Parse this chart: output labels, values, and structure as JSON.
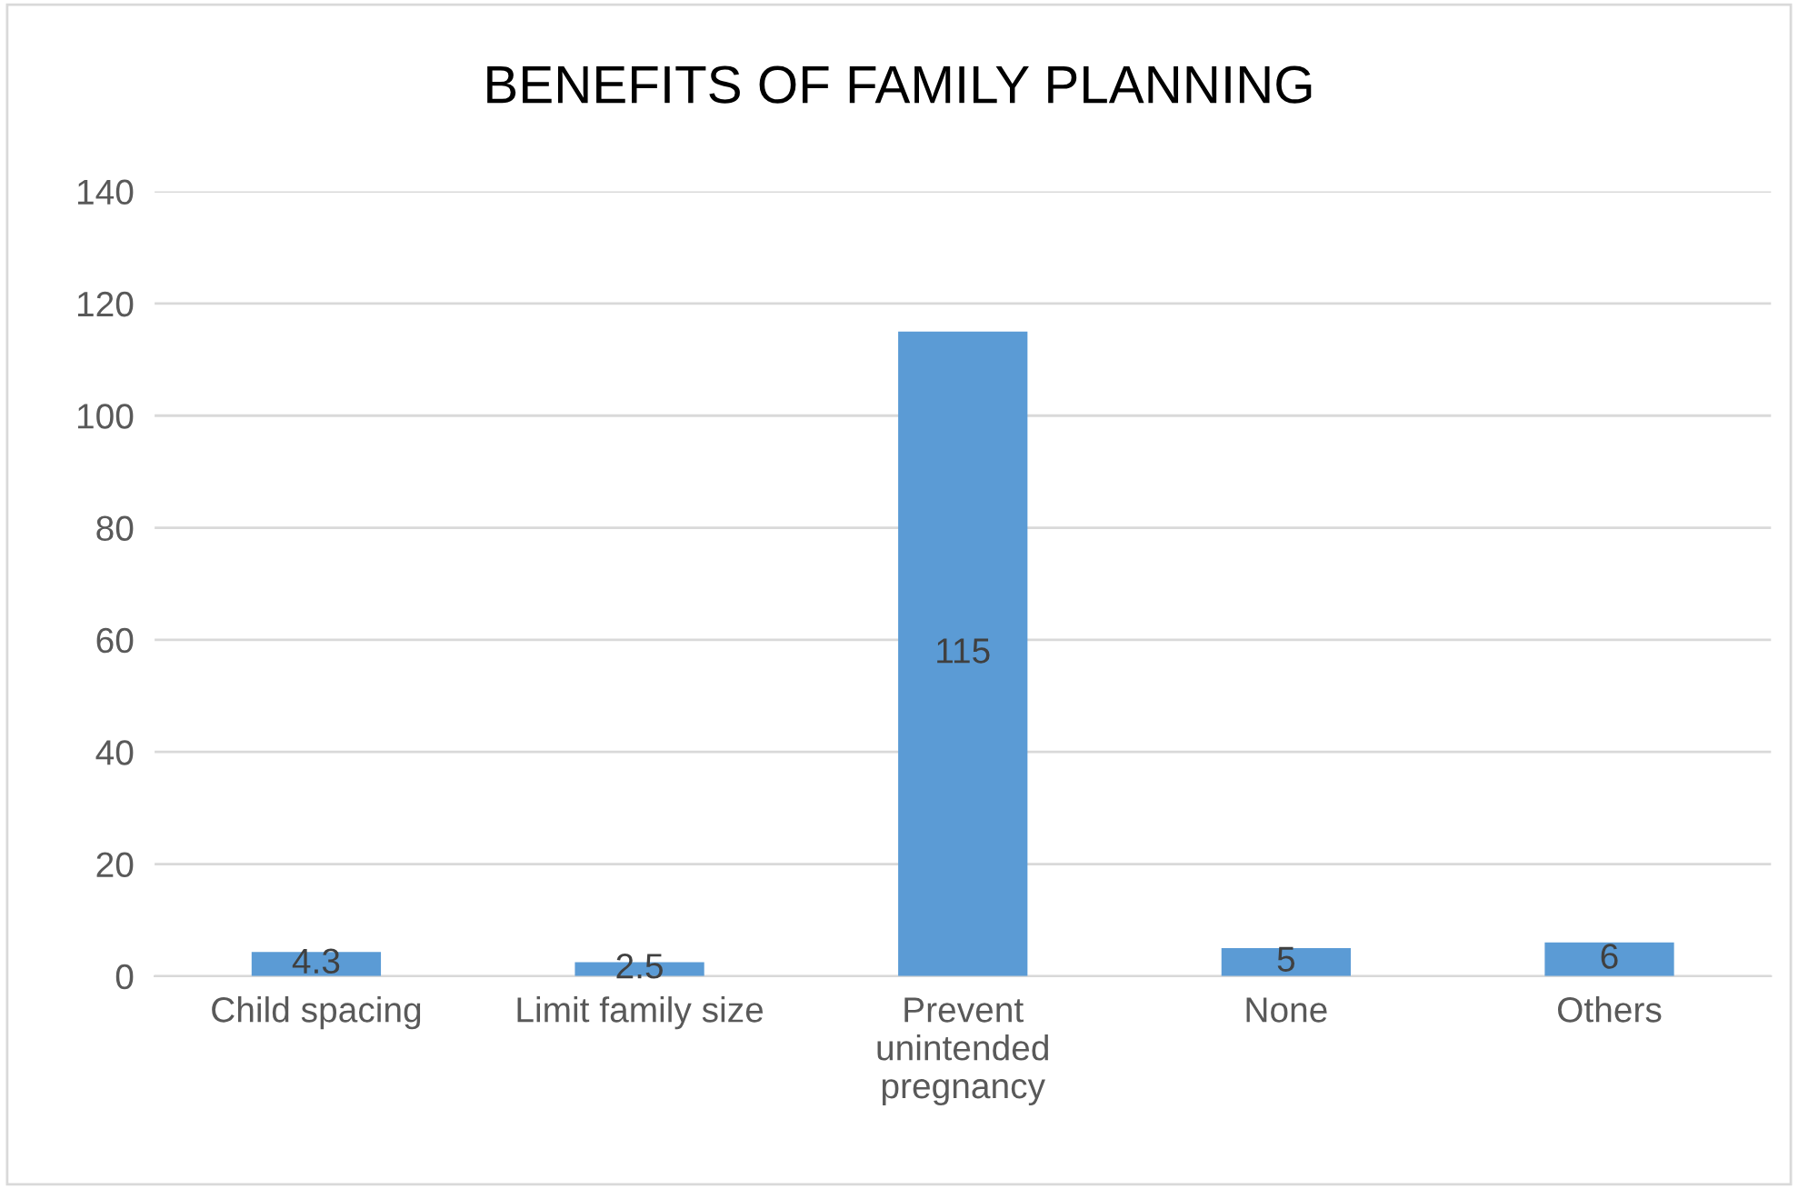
{
  "chart_data": {
    "type": "bar",
    "title": "BENEFITS OF FAMILY PLANNING",
    "categories": [
      "Child spacing",
      "Limit family size",
      "Prevent\nunintended\npregnancy",
      "None",
      "Others"
    ],
    "values": [
      4.3,
      2.5,
      115,
      5,
      6
    ],
    "color": "#5b9bd5",
    "ylim": [
      0,
      140
    ],
    "yticks": [
      0,
      20,
      40,
      60,
      80,
      100,
      120,
      140
    ],
    "grid": "y",
    "data_labels": true
  }
}
